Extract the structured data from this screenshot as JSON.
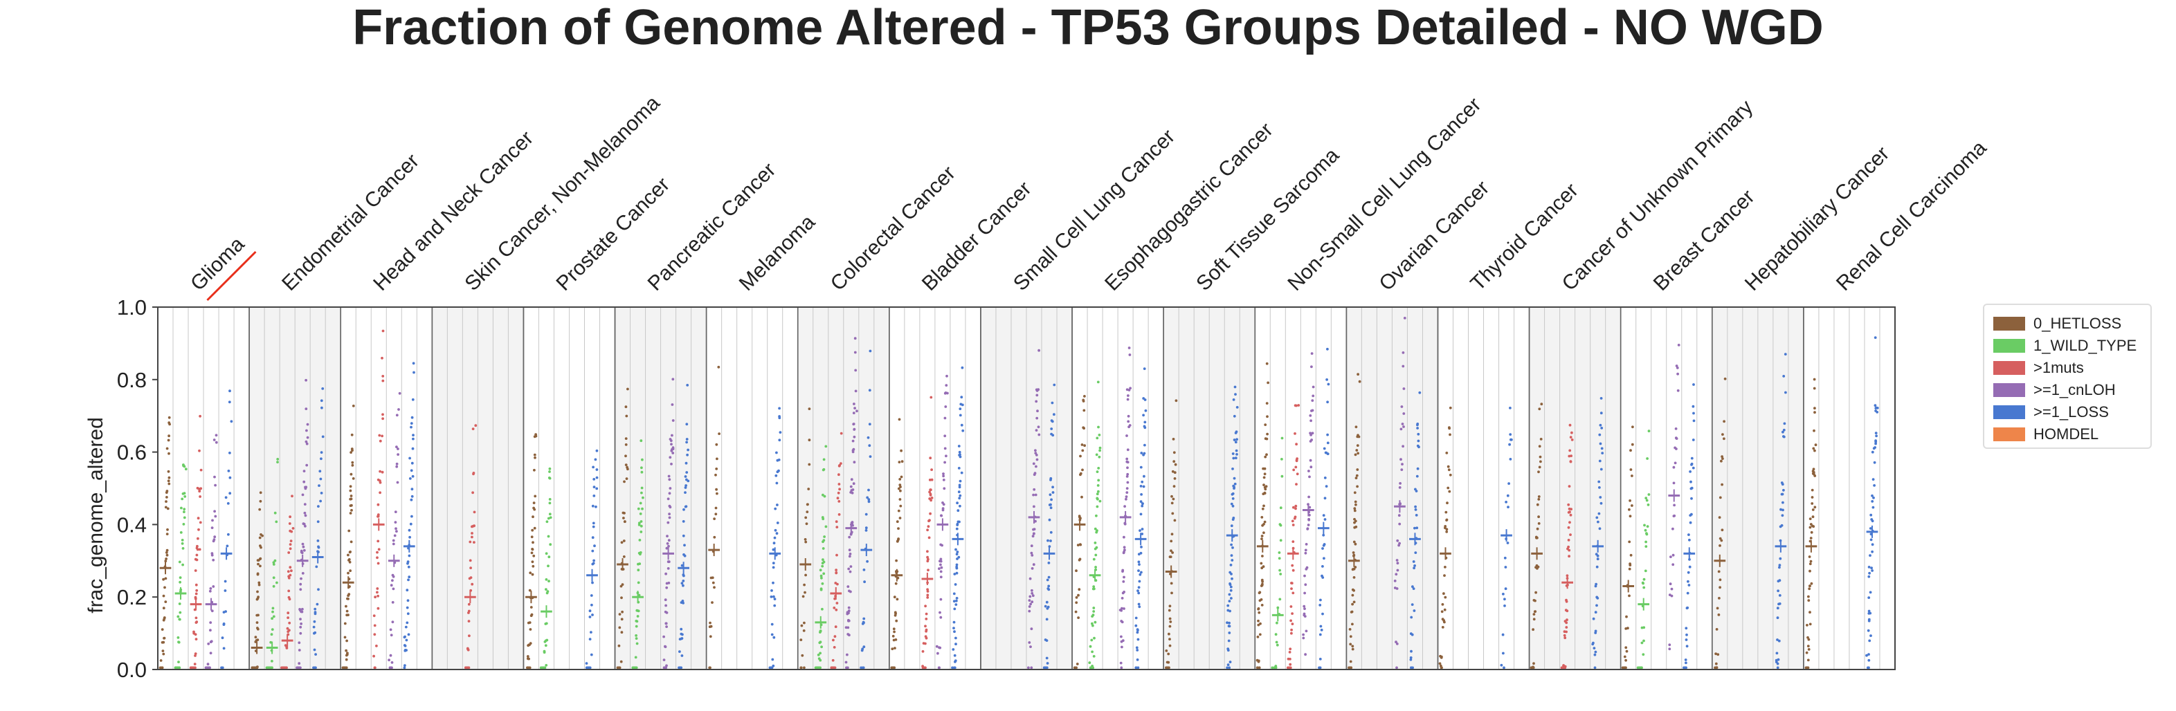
{
  "chart_data": {
    "type": "scatter",
    "title": "Fraction of Genome Altered - TP53 Groups Detailed - NO WGD",
    "xlabel": "",
    "ylabel": "frac_genome_altered",
    "ylim": [
      0.0,
      1.0
    ],
    "yticks": [
      "0.0",
      "0.2",
      "0.4",
      "0.6",
      "0.8",
      "1.0"
    ],
    "legend_position": "right",
    "highlighted_category": "Glioma",
    "groups": [
      "0_HETLOSS",
      "1_WILD_TYPE",
      ">1muts",
      ">=1_cnLOH",
      ">=1_LOSS",
      "HOMDEL"
    ],
    "colors": {
      "0_HETLOSS": "#8c613c",
      "1_WILD_TYPE": "#6acc64",
      ">1muts": "#d65f5f",
      ">=1_cnLOH": "#956cb4",
      ">=1_LOSS": "#4878d0",
      "HOMDEL": "#ee854a"
    },
    "categories": [
      "Glioma",
      "Endometrial Cancer",
      "Head and Neck Cancer",
      "Skin Cancer, Non-Melanoma",
      "Prostate Cancer",
      "Pancreatic Cancer",
      "Melanoma",
      "Colorectal Cancer",
      "Bladder Cancer",
      "Small Cell Lung Cancer",
      "Esophagogastric Cancer",
      "Soft Tissue Sarcoma",
      "Non-Small Cell Lung Cancer",
      "Ovarian Cancer",
      "Thyroid Cancer",
      "Cancer of Unknown Primary",
      "Breast Cancer",
      "Hepatobiliary Cancer",
      "Renal Cell Carcinoma"
    ],
    "medians": [
      {
        "0_HETLOSS": 0.28,
        "1_WILD_TYPE": 0.21,
        ">1muts": 0.18,
        ">=1_cnLOH": 0.18,
        ">=1_LOSS": 0.32
      },
      {
        "0_HETLOSS": 0.06,
        "1_WILD_TYPE": 0.06,
        ">1muts": 0.08,
        ">=1_cnLOH": 0.3,
        ">=1_LOSS": 0.31
      },
      {
        "0_HETLOSS": 0.24,
        ">1muts": 0.4,
        ">=1_cnLOH": 0.3,
        ">=1_LOSS": 0.34
      },
      {
        ">1muts": 0.2
      },
      {
        "0_HETLOSS": 0.2,
        "1_WILD_TYPE": 0.16,
        ">=1_LOSS": 0.26
      },
      {
        "0_HETLOSS": 0.29,
        "1_WILD_TYPE": 0.2,
        ">=1_cnLOH": 0.32,
        ">=1_LOSS": 0.28
      },
      {
        "0_HETLOSS": 0.33,
        ">=1_LOSS": 0.32
      },
      {
        "0_HETLOSS": 0.29,
        "1_WILD_TYPE": 0.13,
        ">1muts": 0.21,
        ">=1_cnLOH": 0.39,
        ">=1_LOSS": 0.33
      },
      {
        "0_HETLOSS": 0.26,
        ">1muts": 0.25,
        ">=1_cnLOH": 0.4,
        ">=1_LOSS": 0.36
      },
      {
        ">=1_cnLOH": 0.42,
        ">=1_LOSS": 0.32
      },
      {
        "0_HETLOSS": 0.4,
        "1_WILD_TYPE": 0.26,
        ">=1_cnLOH": 0.42,
        ">=1_LOSS": 0.36
      },
      {
        "0_HETLOSS": 0.27,
        ">=1_LOSS": 0.37
      },
      {
        "0_HETLOSS": 0.34,
        "1_WILD_TYPE": 0.15,
        ">1muts": 0.32,
        ">=1_cnLOH": 0.44,
        ">=1_LOSS": 0.39
      },
      {
        "0_HETLOSS": 0.3,
        ">=1_cnLOH": 0.45,
        ">=1_LOSS": 0.36
      },
      {
        "0_HETLOSS": 0.32,
        ">=1_LOSS": 0.37
      },
      {
        "0_HETLOSS": 0.32,
        ">1muts": 0.24,
        ">=1_LOSS": 0.34
      },
      {
        "0_HETLOSS": 0.23,
        "1_WILD_TYPE": 0.18,
        ">=1_cnLOH": 0.48,
        ">=1_LOSS": 0.32
      },
      {
        "0_HETLOSS": 0.3,
        ">=1_LOSS": 0.34
      },
      {
        "0_HETLOSS": 0.34,
        ">=1_LOSS": 0.38
      }
    ]
  }
}
